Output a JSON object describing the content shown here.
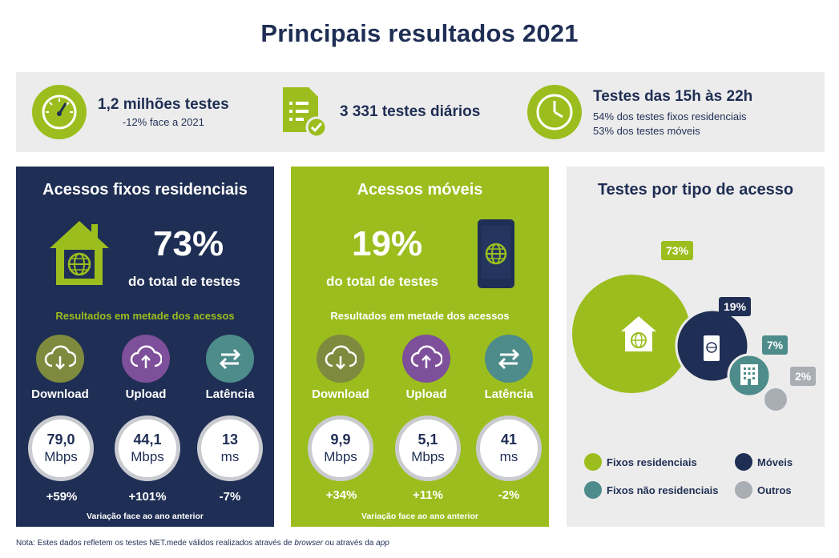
{
  "title": "Principais resultados 2021",
  "summary": {
    "tests": {
      "main": "1,2 milhões testes",
      "sub": "-12% face a 2021"
    },
    "daily": {
      "main": "3 331 testes diários"
    },
    "hours": {
      "main": "Testes das 15h às 22h",
      "sub1": "54% dos testes fixos residenciais",
      "sub2": "53% dos testes móveis"
    }
  },
  "fixed": {
    "title": "Acessos fixos residenciais",
    "pct": "73%",
    "pct_label": "do total de testes",
    "half_label": "Resultados em metade dos acessos",
    "metrics": [
      {
        "name": "Download",
        "value": "79,0",
        "unit": "Mbps",
        "change": "+59%"
      },
      {
        "name": "Upload",
        "value": "44,1",
        "unit": "Mbps",
        "change": "+101%"
      },
      {
        "name": "Latência",
        "value": "13",
        "unit": "ms",
        "change": "-7%"
      }
    ],
    "variation": "Variação face ao ano anterior"
  },
  "mobile": {
    "title": "Acessos móveis",
    "pct": "19%",
    "pct_label": "do total de testes",
    "half_label": "Resultados em metade dos acessos",
    "metrics": [
      {
        "name": "Download",
        "value": "9,9",
        "unit": "Mbps",
        "change": "+34%"
      },
      {
        "name": "Upload",
        "value": "5,1",
        "unit": "Mbps",
        "change": "+11%"
      },
      {
        "name": "Latência",
        "value": "41",
        "unit": "ms",
        "change": "-2%"
      }
    ],
    "variation": "Variação face ao ano anterior"
  },
  "access_chart": {
    "title": "Testes por tipo de acesso",
    "bubbles": [
      {
        "label": "73%",
        "value": 73,
        "color": "#9cbd1e"
      },
      {
        "label": "19%",
        "value": 19,
        "color": "#1f2e54"
      },
      {
        "label": "7%",
        "value": 7,
        "color": "#4d8c8a"
      },
      {
        "label": "2%",
        "value": 2,
        "color": "#a9adb4"
      }
    ],
    "legend": [
      {
        "label": "Fixos residenciais",
        "color": "#9cbd1e"
      },
      {
        "label": "Móveis",
        "color": "#1f2e54"
      },
      {
        "label": "Fixos não residenciais",
        "color": "#4d8c8a"
      },
      {
        "label": "Outros",
        "color": "#a9adb4"
      }
    ]
  },
  "colors": {
    "navy": "#1f2e54",
    "green": "#9cbd1e",
    "teal": "#4d8c8a",
    "olive": "#7e8a3e",
    "purple": "#7e4f9a",
    "grey": "#a9adb4"
  },
  "footnote": {
    "pre": "Nota: Estes dados refletem os testes NET.mede válidos realizados através de ",
    "browser": "browser",
    "mid": " ou através da ",
    "app": "app"
  }
}
